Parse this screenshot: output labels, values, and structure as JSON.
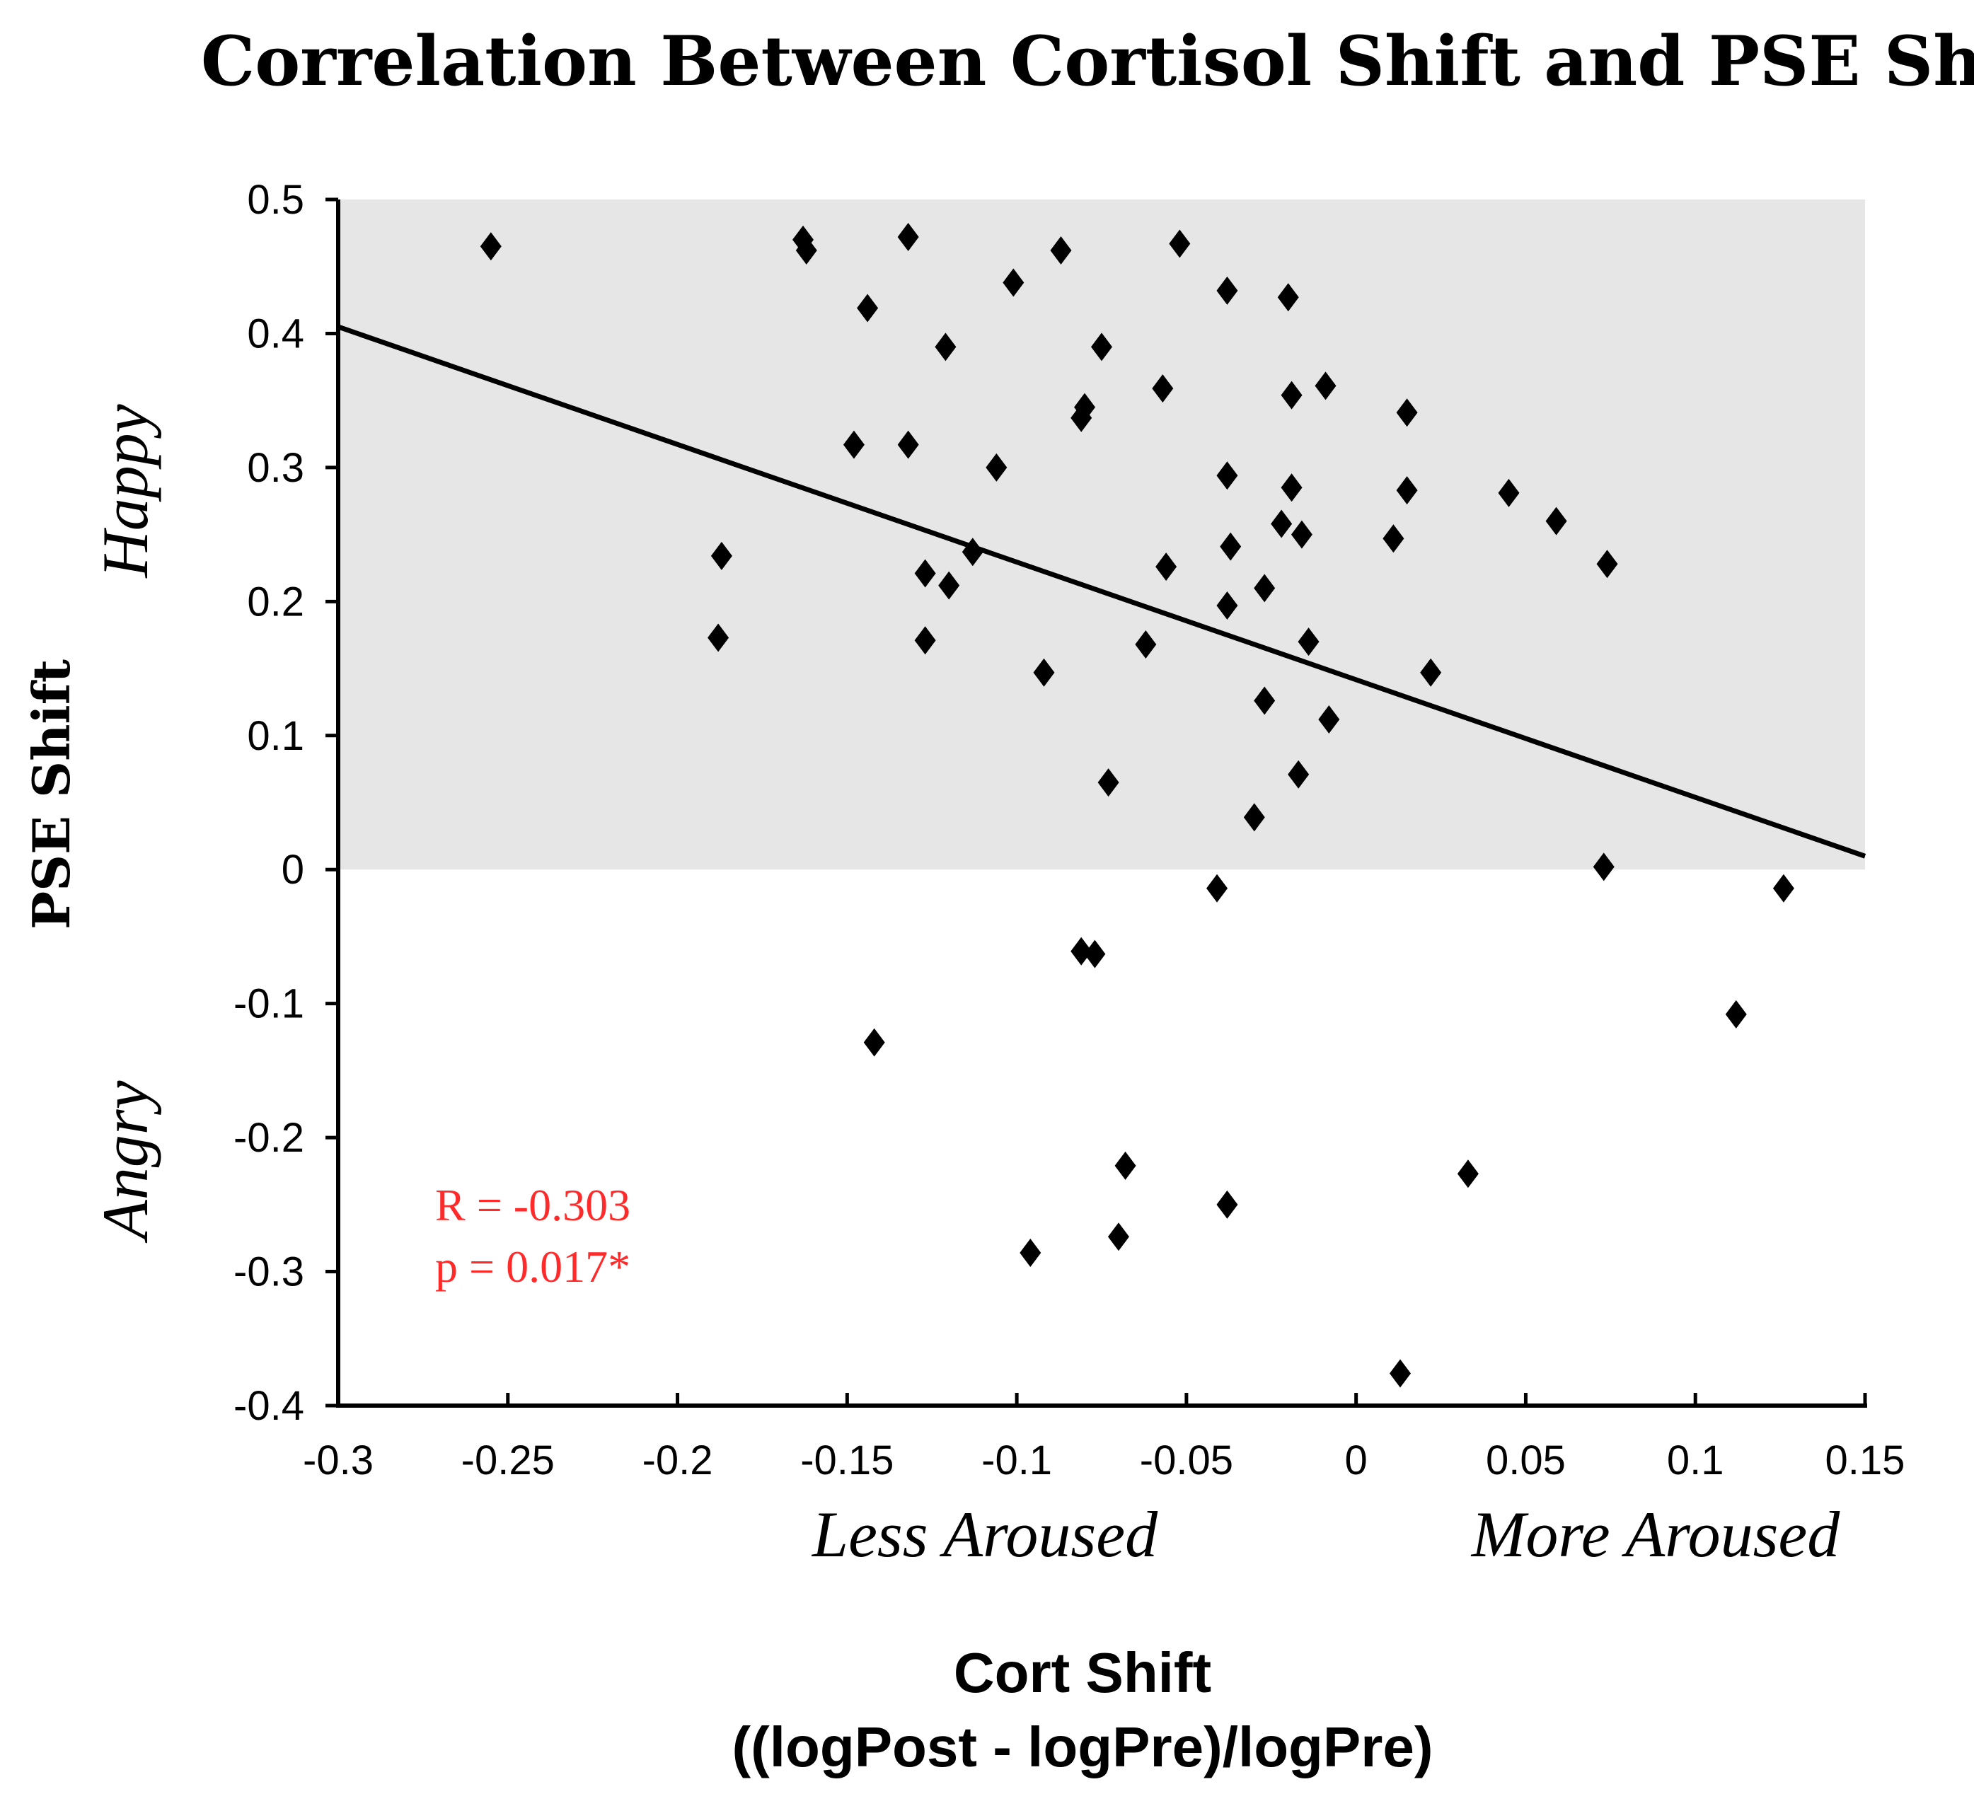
{
  "chart_data": {
    "type": "scatter",
    "title": "Correlation Between Cortisol Shift and PSE Shift",
    "xlabel": "Cort Shift",
    "xlabel_sub": "((logPost - logPre)/logPre)",
    "ylabel": "PSE Shift",
    "xlim": [
      -0.3,
      0.15
    ],
    "ylim": [
      -0.4,
      0.5
    ],
    "xticks": [
      -0.3,
      -0.25,
      -0.2,
      -0.15,
      -0.1,
      -0.05,
      0,
      0.05,
      0.1,
      0.15
    ],
    "xtick_labels": [
      "-0.3",
      "-0.25",
      "-0.2",
      "-0.15",
      "-0.1",
      "-0.05",
      "0",
      "0.05",
      "0.1",
      "0.15"
    ],
    "yticks": [
      0.5,
      0.4,
      0.3,
      0.2,
      0.1,
      0,
      -0.1,
      -0.2,
      -0.3,
      -0.4
    ],
    "ytick_labels": [
      "0.5",
      "0.4",
      "0.3",
      "0.2",
      "0.1",
      "0",
      "-0.1",
      "-0.2",
      "-0.3",
      "-0.4"
    ],
    "shaded_region": {
      "y_from": 0,
      "y_to": 0.5,
      "color": "#e6e6e6"
    },
    "region_labels": {
      "happy": "Happy",
      "angry": "Angry",
      "less_aroused": "Less Aroused",
      "more_aroused": "More Aroused"
    },
    "stats": {
      "r_text": "R = -0.303",
      "p_text": "p = 0.017*",
      "color": "#ff2a2a"
    },
    "fit_line": {
      "x": [
        -0.3,
        0.15
      ],
      "y": [
        0.405,
        0.01
      ]
    },
    "marker_color": "#000000",
    "points": [
      {
        "x": -0.255,
        "y": 0.465
      },
      {
        "x": -0.163,
        "y": 0.47
      },
      {
        "x": -0.162,
        "y": 0.462
      },
      {
        "x": -0.132,
        "y": 0.472
      },
      {
        "x": -0.087,
        "y": 0.462
      },
      {
        "x": -0.052,
        "y": 0.467
      },
      {
        "x": -0.144,
        "y": 0.419
      },
      {
        "x": -0.101,
        "y": 0.438
      },
      {
        "x": -0.038,
        "y": 0.432
      },
      {
        "x": -0.02,
        "y": 0.427
      },
      {
        "x": -0.121,
        "y": 0.39
      },
      {
        "x": -0.075,
        "y": 0.39
      },
      {
        "x": -0.057,
        "y": 0.359
      },
      {
        "x": -0.019,
        "y": 0.354
      },
      {
        "x": -0.009,
        "y": 0.361
      },
      {
        "x": -0.08,
        "y": 0.345
      },
      {
        "x": -0.081,
        "y": 0.337
      },
      {
        "x": 0.015,
        "y": 0.341
      },
      {
        "x": -0.148,
        "y": 0.317
      },
      {
        "x": -0.132,
        "y": 0.317
      },
      {
        "x": -0.106,
        "y": 0.3
      },
      {
        "x": -0.038,
        "y": 0.294
      },
      {
        "x": -0.019,
        "y": 0.285
      },
      {
        "x": 0.015,
        "y": 0.283
      },
      {
        "x": 0.045,
        "y": 0.281
      },
      {
        "x": 0.059,
        "y": 0.26
      },
      {
        "x": -0.022,
        "y": 0.258
      },
      {
        "x": -0.016,
        "y": 0.25
      },
      {
        "x": 0.011,
        "y": 0.247
      },
      {
        "x": -0.037,
        "y": 0.241
      },
      {
        "x": -0.187,
        "y": 0.234
      },
      {
        "x": -0.113,
        "y": 0.237
      },
      {
        "x": 0.074,
        "y": 0.228
      },
      {
        "x": -0.056,
        "y": 0.226
      },
      {
        "x": -0.127,
        "y": 0.221
      },
      {
        "x": -0.12,
        "y": 0.212
      },
      {
        "x": -0.027,
        "y": 0.21
      },
      {
        "x": -0.038,
        "y": 0.197
      },
      {
        "x": -0.188,
        "y": 0.173
      },
      {
        "x": -0.127,
        "y": 0.171
      },
      {
        "x": -0.062,
        "y": 0.168
      },
      {
        "x": -0.014,
        "y": 0.17
      },
      {
        "x": -0.092,
        "y": 0.147
      },
      {
        "x": 0.022,
        "y": 0.147
      },
      {
        "x": -0.027,
        "y": 0.126
      },
      {
        "x": -0.008,
        "y": 0.112
      },
      {
        "x": -0.017,
        "y": 0.071
      },
      {
        "x": -0.073,
        "y": 0.065
      },
      {
        "x": -0.03,
        "y": 0.039
      },
      {
        "x": 0.073,
        "y": 0.002
      },
      {
        "x": -0.041,
        "y": -0.014
      },
      {
        "x": 0.126,
        "y": -0.014
      },
      {
        "x": -0.081,
        "y": -0.061
      },
      {
        "x": -0.077,
        "y": -0.063
      },
      {
        "x": 0.112,
        "y": -0.108
      },
      {
        "x": -0.142,
        "y": -0.129
      },
      {
        "x": -0.068,
        "y": -0.221
      },
      {
        "x": 0.033,
        "y": -0.227
      },
      {
        "x": -0.038,
        "y": -0.25
      },
      {
        "x": -0.07,
        "y": -0.274
      },
      {
        "x": -0.096,
        "y": -0.286
      },
      {
        "x": 0.013,
        "y": -0.376
      }
    ]
  }
}
